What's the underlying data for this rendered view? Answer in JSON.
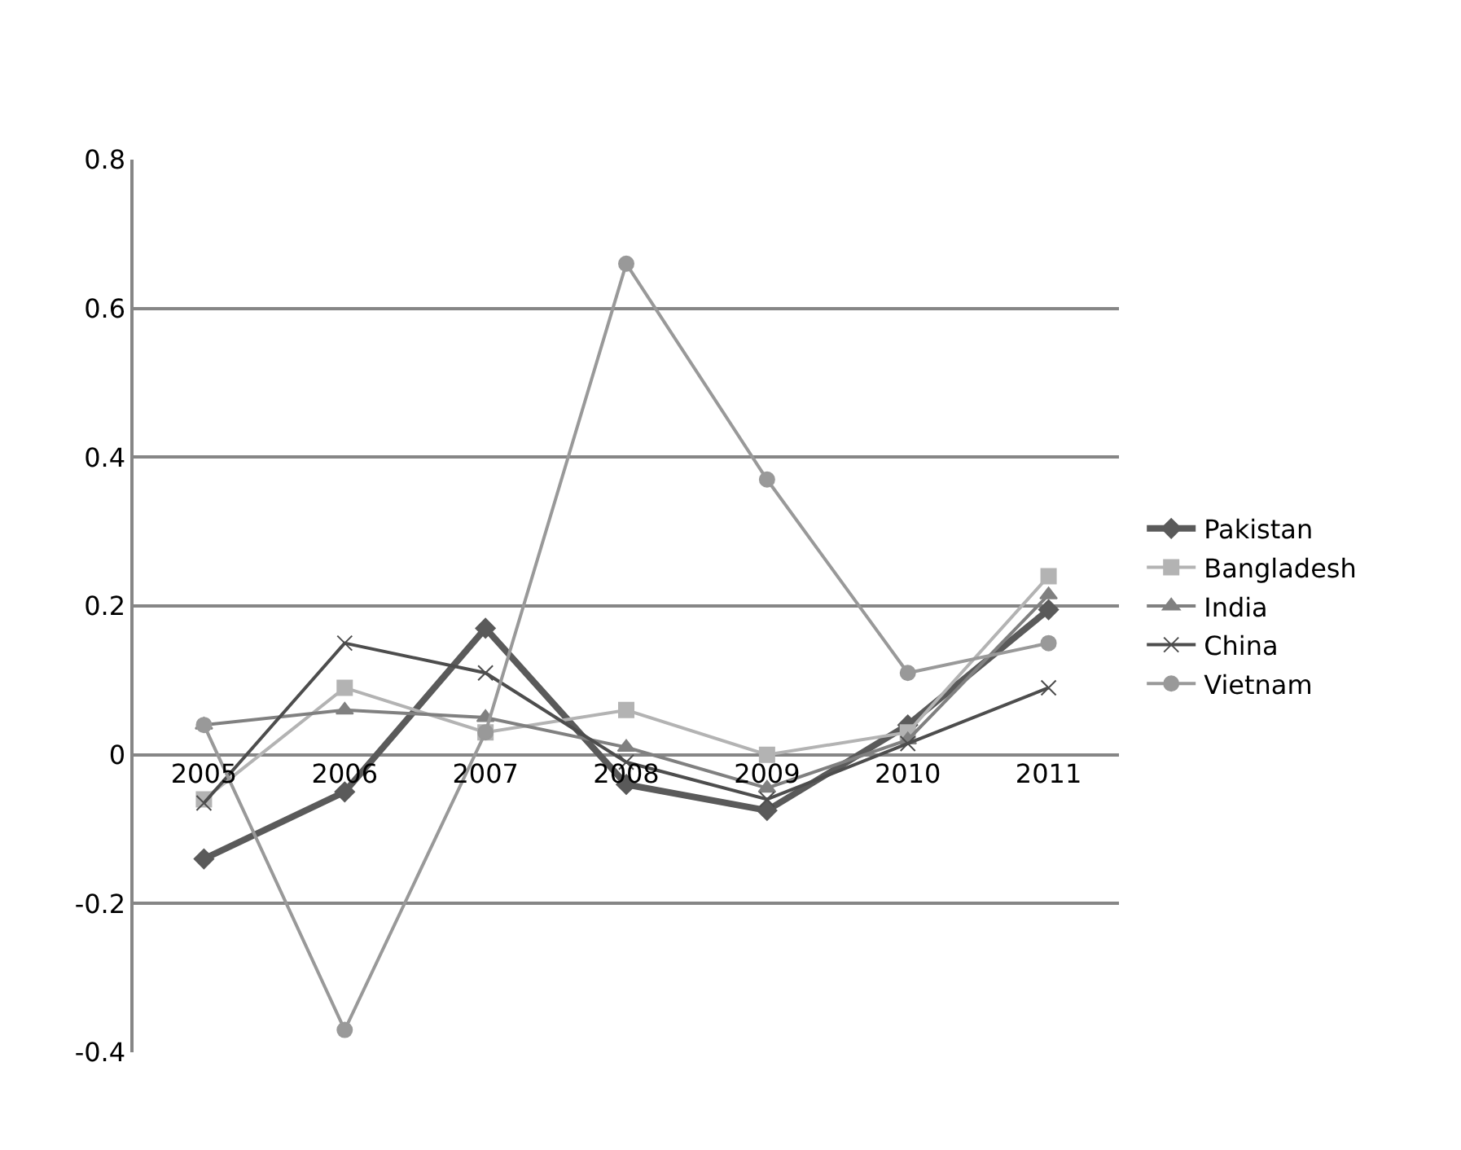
{
  "chart_data": {
    "type": "line",
    "categories": [
      "2005",
      "2006",
      "2007",
      "2008",
      "2009",
      "2010",
      "2011"
    ],
    "ylim": [
      -0.4,
      0.8
    ],
    "yticks": [
      -0.4,
      -0.2,
      0,
      0.2,
      0.4,
      0.6,
      0.8
    ],
    "grid": "y",
    "legend": "right",
    "line_style": "solid",
    "series": [
      {
        "name": "Pakistan",
        "color": "#5a5a5a",
        "marker": "diamond",
        "values": [
          -0.14,
          -0.05,
          0.17,
          -0.04,
          -0.075,
          0.04,
          0.195
        ]
      },
      {
        "name": "Bangladesh",
        "color": "#b3b3b3",
        "marker": "square",
        "values": [
          -0.06,
          0.09,
          0.03,
          0.06,
          0.0,
          0.03,
          0.24
        ]
      },
      {
        "name": "India",
        "color": "#808080",
        "marker": "triangle",
        "values": [
          0.04,
          0.06,
          0.05,
          0.01,
          -0.045,
          0.02,
          0.215
        ]
      },
      {
        "name": "China",
        "color": "#4d4d4d",
        "marker": "cross",
        "values": [
          -0.065,
          0.15,
          0.11,
          -0.01,
          -0.06,
          0.015,
          0.09
        ]
      },
      {
        "name": "Vietnam",
        "color": "#999999",
        "marker": "circle",
        "values": [
          0.04,
          -0.37,
          0.03,
          0.66,
          0.37,
          0.11,
          0.15
        ]
      }
    ]
  }
}
